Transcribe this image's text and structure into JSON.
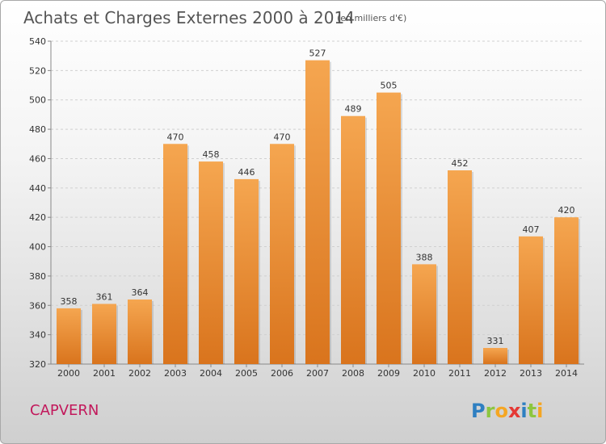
{
  "chart_data": {
    "type": "bar",
    "title": "Achats et Charges Externes 2000 à 2014",
    "subtitle": "(en milliers d'€)",
    "categories": [
      "2000",
      "2001",
      "2002",
      "2003",
      "2004",
      "2005",
      "2006",
      "2007",
      "2008",
      "2009",
      "2010",
      "2011",
      "2012",
      "2013",
      "2014"
    ],
    "values": [
      358,
      361,
      364,
      470,
      458,
      446,
      470,
      527,
      489,
      505,
      388,
      452,
      331,
      407,
      420
    ],
    "ylim": [
      320,
      540
    ],
    "yticks": [
      320,
      340,
      360,
      380,
      400,
      420,
      440,
      460,
      480,
      500,
      520,
      540
    ],
    "grid": true,
    "legend": "none",
    "bar_color_top": "#f5a650",
    "bar_color_bottom": "#d9741d"
  },
  "footer": {
    "commune": "CAPVERN",
    "brand_letters": [
      {
        "ch": "P",
        "color": "#2e7fc1"
      },
      {
        "ch": "r",
        "color": "#8dc63f"
      },
      {
        "ch": "o",
        "color": "#f5a623"
      },
      {
        "ch": "x",
        "color": "#e53935"
      },
      {
        "ch": "i",
        "color": "#2e7fc1"
      },
      {
        "ch": "t",
        "color": "#8dc63f"
      },
      {
        "ch": "i",
        "color": "#f5a623"
      }
    ]
  }
}
